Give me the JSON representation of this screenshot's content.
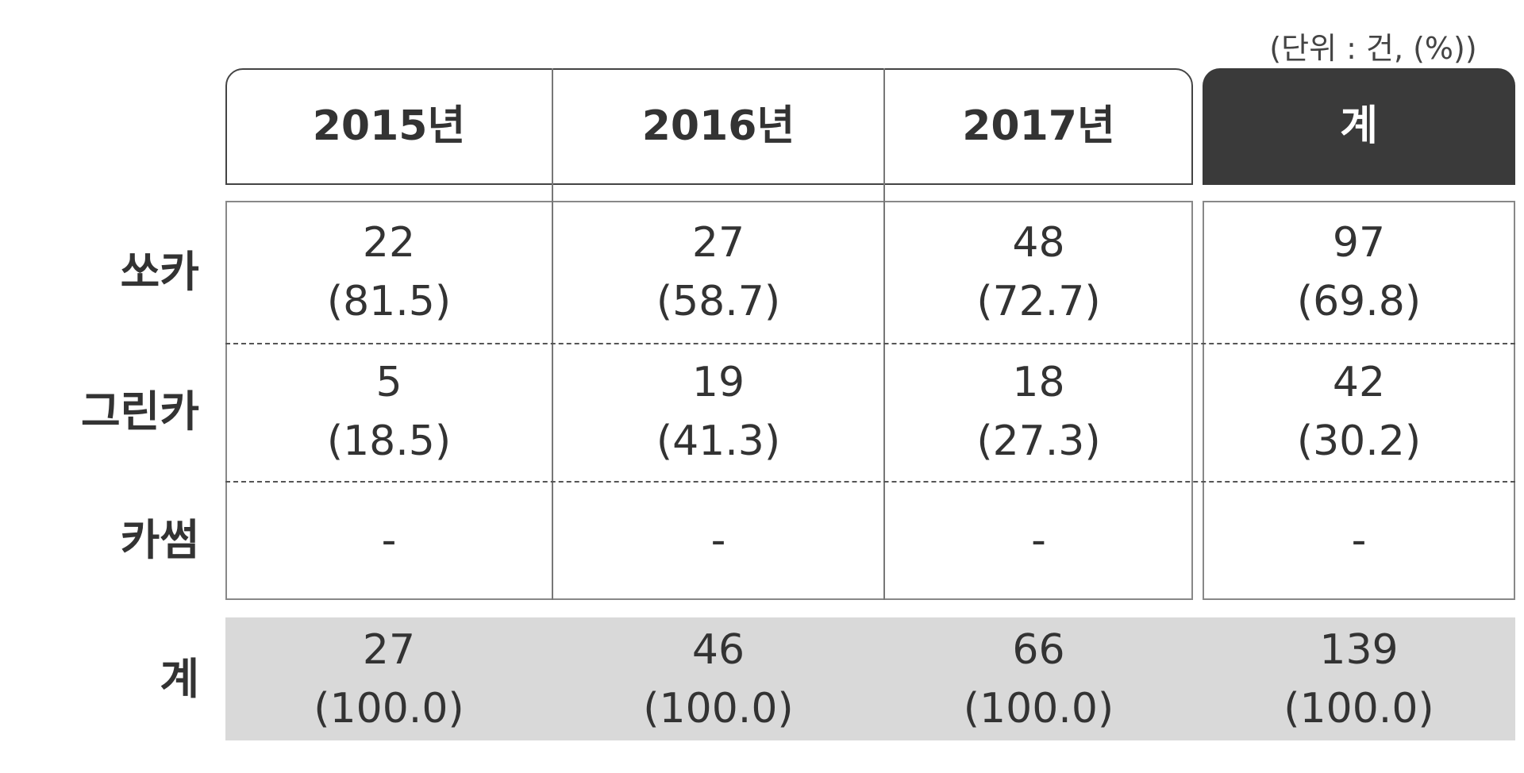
{
  "unit": "(단위 : 건, (%))",
  "table": {
    "columns": [
      "2015년",
      "2016년",
      "2017년",
      "계"
    ],
    "rows": [
      {
        "label": "쏘카",
        "cells": [
          [
            "22",
            "(81.5)"
          ],
          [
            "27",
            "(58.7)"
          ],
          [
            "48",
            "(72.7)"
          ],
          [
            "97",
            "(69.8)"
          ]
        ]
      },
      {
        "label": "그린카",
        "cells": [
          [
            "5",
            "(18.5)"
          ],
          [
            "19",
            "(41.3)"
          ],
          [
            "18",
            "(27.3)"
          ],
          [
            "42",
            "(30.2)"
          ]
        ]
      },
      {
        "label": "카썸",
        "cells": [
          [
            "-"
          ],
          [
            "-"
          ],
          [
            "-"
          ],
          [
            "-"
          ]
        ]
      },
      {
        "label": "계",
        "cells": [
          [
            "27",
            "(100.0)"
          ],
          [
            "46",
            "(100.0)"
          ],
          [
            "66",
            "(100.0)"
          ],
          [
            "139",
            "(100.0)"
          ]
        ]
      }
    ]
  }
}
